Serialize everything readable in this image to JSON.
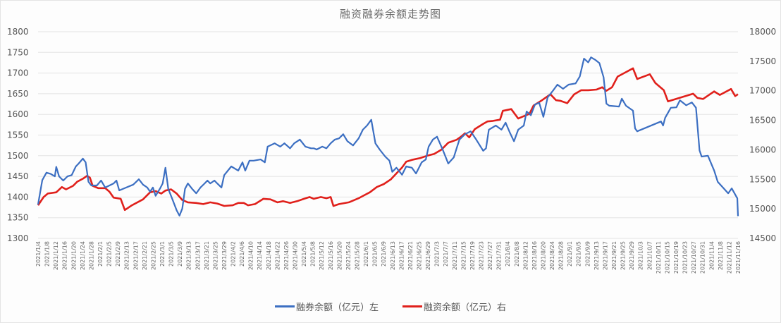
{
  "chart_data": {
    "type": "line",
    "title": "融资融券余额走势图",
    "xlabel": "",
    "ylabel_left": "融券余额（亿元）",
    "ylabel_right": "融资余额（亿元）",
    "left_axis": {
      "min": 1300,
      "max": 1800,
      "step": 50,
      "ticks": [
        1300,
        1350,
        1400,
        1450,
        1500,
        1550,
        1600,
        1650,
        1700,
        1750,
        1800
      ]
    },
    "right_axis": {
      "min": 14500,
      "max": 18000,
      "step": 500,
      "ticks": [
        14500,
        15000,
        15500,
        16000,
        16500,
        17000,
        17500,
        18000
      ]
    },
    "grid": true,
    "legend_position": "bottom",
    "x_range": [
      "2021/1/4",
      "2021/11/16"
    ],
    "categories": [
      "2021/1/4",
      "2021/1/8",
      "2021/1/12",
      "2021/1/16",
      "2021/1/20",
      "2021/1/24",
      "2021/1/28",
      "2021/2/1",
      "2021/2/5",
      "2021/2/9",
      "2021/2/13",
      "2021/2/17",
      "2021/2/21",
      "2021/2/25",
      "2021/3/1",
      "2021/3/5",
      "2021/3/9",
      "2021/3/13",
      "2021/3/17",
      "2021/3/21",
      "2021/3/25",
      "2021/3/29",
      "2021/4/2",
      "2021/4/6",
      "2021/4/10",
      "2021/4/14",
      "2021/4/18",
      "2021/4/22",
      "2021/4/26",
      "2021/4/30",
      "2021/5/4",
      "2021/5/8",
      "2021/5/12",
      "2021/5/16",
      "2021/5/20",
      "2021/5/24",
      "2021/5/28",
      "2021/6/1",
      "2021/6/5",
      "2021/6/9",
      "2021/6/13",
      "2021/6/17",
      "2021/6/21",
      "2021/6/25",
      "2021/6/29",
      "2021/7/3",
      "2021/7/7",
      "2021/7/11",
      "2021/7/15",
      "2021/7/19",
      "2021/7/23",
      "2021/7/27",
      "2021/7/31",
      "2021/8/4",
      "2021/8/8",
      "2021/8/12",
      "2021/8/16",
      "2021/8/20",
      "2021/8/24",
      "2021/8/28",
      "2021/9/1",
      "2021/9/5",
      "2021/9/9",
      "2021/9/13",
      "2021/9/17",
      "2021/9/21",
      "2021/9/25",
      "2021/9/29",
      "2021/10/3",
      "2021/10/7",
      "2021/10/11",
      "2021/10/15",
      "2021/10/19",
      "2021/10/23",
      "2021/10/27",
      "2021/10/31",
      "2021/11/4",
      "2021/11/8",
      "2021/11/12",
      "2021/11/16"
    ],
    "series": [
      {
        "name": "融券余额（亿元）左",
        "axis": "left",
        "color": "#3c6fc2",
        "points_note": "x = fraction of time range (0=2021/1/4, 1=2021/11/16); y = value",
        "points": [
          [
            0.0,
            1382
          ],
          [
            0.006,
            1441
          ],
          [
            0.012,
            1459
          ],
          [
            0.018,
            1456
          ],
          [
            0.024,
            1450
          ],
          [
            0.026,
            1473
          ],
          [
            0.03,
            1450
          ],
          [
            0.036,
            1440
          ],
          [
            0.042,
            1450
          ],
          [
            0.048,
            1453
          ],
          [
            0.054,
            1474
          ],
          [
            0.058,
            1481
          ],
          [
            0.064,
            1493
          ],
          [
            0.068,
            1484
          ],
          [
            0.072,
            1437
          ],
          [
            0.076,
            1428
          ],
          [
            0.084,
            1428
          ],
          [
            0.09,
            1440
          ],
          [
            0.096,
            1423
          ],
          [
            0.102,
            1428
          ],
          [
            0.108,
            1433
          ],
          [
            0.112,
            1440
          ],
          [
            0.116,
            1416
          ],
          [
            0.126,
            1423
          ],
          [
            0.136,
            1430
          ],
          [
            0.144,
            1443
          ],
          [
            0.15,
            1430
          ],
          [
            0.156,
            1423
          ],
          [
            0.16,
            1413
          ],
          [
            0.164,
            1423
          ],
          [
            0.168,
            1403
          ],
          [
            0.174,
            1420
          ],
          [
            0.178,
            1433
          ],
          [
            0.182,
            1471
          ],
          [
            0.186,
            1420
          ],
          [
            0.192,
            1394
          ],
          [
            0.198,
            1368
          ],
          [
            0.202,
            1355
          ],
          [
            0.206,
            1372
          ],
          [
            0.21,
            1420
          ],
          [
            0.214,
            1433
          ],
          [
            0.22,
            1420
          ],
          [
            0.226,
            1409
          ],
          [
            0.232,
            1423
          ],
          [
            0.238,
            1433
          ],
          [
            0.242,
            1440
          ],
          [
            0.246,
            1433
          ],
          [
            0.252,
            1440
          ],
          [
            0.256,
            1433
          ],
          [
            0.262,
            1423
          ],
          [
            0.266,
            1453
          ],
          [
            0.276,
            1474
          ],
          [
            0.286,
            1464
          ],
          [
            0.292,
            1484
          ],
          [
            0.296,
            1464
          ],
          [
            0.302,
            1488
          ],
          [
            0.308,
            1488
          ],
          [
            0.318,
            1491
          ],
          [
            0.324,
            1484
          ],
          [
            0.328,
            1522
          ],
          [
            0.338,
            1530
          ],
          [
            0.346,
            1522
          ],
          [
            0.352,
            1530
          ],
          [
            0.36,
            1518
          ],
          [
            0.366,
            1530
          ],
          [
            0.374,
            1539
          ],
          [
            0.382,
            1522
          ],
          [
            0.39,
            1518
          ],
          [
            0.394,
            1518
          ],
          [
            0.398,
            1515
          ],
          [
            0.406,
            1522
          ],
          [
            0.412,
            1518
          ],
          [
            0.418,
            1530
          ],
          [
            0.424,
            1539
          ],
          [
            0.43,
            1542
          ],
          [
            0.436,
            1552
          ],
          [
            0.442,
            1535
          ],
          [
            0.45,
            1525
          ],
          [
            0.458,
            1542
          ],
          [
            0.464,
            1563
          ],
          [
            0.47,
            1573
          ],
          [
            0.476,
            1587
          ],
          [
            0.482,
            1530
          ],
          [
            0.488,
            1515
          ],
          [
            0.496,
            1498
          ],
          [
            0.502,
            1488
          ],
          [
            0.506,
            1461
          ],
          [
            0.512,
            1471
          ],
          [
            0.52,
            1454
          ],
          [
            0.526,
            1474
          ],
          [
            0.534,
            1471
          ],
          [
            0.54,
            1457
          ],
          [
            0.548,
            1484
          ],
          [
            0.554,
            1491
          ],
          [
            0.558,
            1522
          ],
          [
            0.564,
            1539
          ],
          [
            0.57,
            1546
          ],
          [
            0.578,
            1515
          ],
          [
            0.586,
            1481
          ],
          [
            0.594,
            1496
          ],
          [
            0.598,
            1518
          ],
          [
            0.602,
            1539
          ],
          [
            0.61,
            1552
          ],
          [
            0.618,
            1559
          ],
          [
            0.626,
            1539
          ],
          [
            0.636,
            1512
          ],
          [
            0.64,
            1518
          ],
          [
            0.644,
            1563
          ],
          [
            0.654,
            1573
          ],
          [
            0.662,
            1563
          ],
          [
            0.668,
            1580
          ],
          [
            0.674,
            1556
          ],
          [
            0.68,
            1535
          ],
          [
            0.686,
            1563
          ],
          [
            0.694,
            1573
          ],
          [
            0.698,
            1607
          ],
          [
            0.704,
            1598
          ],
          [
            0.71,
            1624
          ],
          [
            0.716,
            1628
          ],
          [
            0.722,
            1594
          ],
          [
            0.728,
            1641
          ],
          [
            0.736,
            1658
          ],
          [
            0.742,
            1672
          ],
          [
            0.75,
            1662
          ],
          [
            0.758,
            1672
          ],
          [
            0.768,
            1675
          ],
          [
            0.774,
            1692
          ],
          [
            0.736,
            1658
          ],
          [
            0.78,
            1735
          ],
          [
            0.786,
            1726
          ],
          [
            0.79,
            1738
          ],
          [
            0.796,
            1732
          ],
          [
            0.802,
            1724
          ],
          [
            0.808,
            1690
          ],
          [
            0.812,
            1626
          ],
          [
            0.816,
            1621
          ],
          [
            0.83,
            1619
          ],
          [
            0.834,
            1638
          ],
          [
            0.84,
            1621
          ],
          [
            0.85,
            1609
          ],
          [
            0.853,
            1566
          ],
          [
            0.856,
            1559
          ],
          [
            0.89,
            1583
          ],
          [
            0.893,
            1573
          ],
          [
            0.896,
            1592
          ],
          [
            0.904,
            1616
          ],
          [
            0.912,
            1617
          ],
          [
            0.917,
            1634
          ],
          [
            0.926,
            1622
          ],
          [
            0.934,
            1629
          ],
          [
            0.94,
            1616
          ],
          [
            0.945,
            1513
          ],
          [
            0.948,
            1498
          ],
          [
            0.957,
            1500
          ],
          [
            0.966,
            1464
          ],
          [
            0.971,
            1437
          ],
          [
            0.986,
            1409
          ],
          [
            0.991,
            1421
          ],
          [
            0.999,
            1397
          ],
          [
            1.0,
            1354
          ]
        ]
      },
      {
        "name": "融资余额（亿元）右",
        "axis": "right",
        "color": "#e0201b",
        "points_note": "x = fraction of time range (0=2021/1/4, 1=2021/11/16); y = value",
        "points": [
          [
            0.0,
            15060
          ],
          [
            0.008,
            15200
          ],
          [
            0.014,
            15260
          ],
          [
            0.026,
            15280
          ],
          [
            0.034,
            15370
          ],
          [
            0.04,
            15330
          ],
          [
            0.05,
            15390
          ],
          [
            0.056,
            15460
          ],
          [
            0.064,
            15510
          ],
          [
            0.07,
            15560
          ],
          [
            0.074,
            15530
          ],
          [
            0.078,
            15390
          ],
          [
            0.086,
            15350
          ],
          [
            0.096,
            15350
          ],
          [
            0.102,
            15290
          ],
          [
            0.108,
            15190
          ],
          [
            0.118,
            15170
          ],
          [
            0.124,
            14980
          ],
          [
            0.134,
            15060
          ],
          [
            0.15,
            15160
          ],
          [
            0.16,
            15280
          ],
          [
            0.168,
            15300
          ],
          [
            0.176,
            15260
          ],
          [
            0.182,
            15310
          ],
          [
            0.19,
            15330
          ],
          [
            0.198,
            15260
          ],
          [
            0.206,
            15150
          ],
          [
            0.214,
            15110
          ],
          [
            0.226,
            15100
          ],
          [
            0.236,
            15080
          ],
          [
            0.246,
            15110
          ],
          [
            0.256,
            15090
          ],
          [
            0.266,
            15050
          ],
          [
            0.278,
            15060
          ],
          [
            0.286,
            15100
          ],
          [
            0.294,
            15100
          ],
          [
            0.3,
            15060
          ],
          [
            0.31,
            15080
          ],
          [
            0.322,
            15170
          ],
          [
            0.332,
            15160
          ],
          [
            0.342,
            15110
          ],
          [
            0.35,
            15130
          ],
          [
            0.36,
            15100
          ],
          [
            0.37,
            15130
          ],
          [
            0.38,
            15170
          ],
          [
            0.388,
            15200
          ],
          [
            0.394,
            15170
          ],
          [
            0.404,
            15200
          ],
          [
            0.412,
            15180
          ],
          [
            0.418,
            15200
          ],
          [
            0.422,
            15050
          ],
          [
            0.43,
            15080
          ],
          [
            0.444,
            15110
          ],
          [
            0.458,
            15180
          ],
          [
            0.466,
            15230
          ],
          [
            0.474,
            15280
          ],
          [
            0.484,
            15370
          ],
          [
            0.494,
            15420
          ],
          [
            0.504,
            15500
          ],
          [
            0.512,
            15600
          ],
          [
            0.52,
            15700
          ],
          [
            0.526,
            15800
          ],
          [
            0.534,
            15830
          ],
          [
            0.546,
            15860
          ],
          [
            0.556,
            15900
          ],
          [
            0.566,
            15930
          ],
          [
            0.576,
            16000
          ],
          [
            0.586,
            16120
          ],
          [
            0.598,
            16170
          ],
          [
            0.604,
            16220
          ],
          [
            0.61,
            16280
          ],
          [
            0.616,
            16210
          ],
          [
            0.624,
            16350
          ],
          [
            0.636,
            16440
          ],
          [
            0.642,
            16480
          ],
          [
            0.65,
            16490
          ],
          [
            0.66,
            16510
          ],
          [
            0.664,
            16660
          ],
          [
            0.676,
            16690
          ],
          [
            0.686,
            16530
          ],
          [
            0.694,
            16570
          ],
          [
            0.702,
            16610
          ],
          [
            0.708,
            16750
          ],
          [
            0.72,
            16840
          ],
          [
            0.732,
            16940
          ],
          [
            0.74,
            16840
          ],
          [
            0.746,
            16830
          ],
          [
            0.756,
            16790
          ],
          [
            0.766,
            16940
          ],
          [
            0.776,
            17010
          ],
          [
            0.786,
            17010
          ],
          [
            0.798,
            17020
          ],
          [
            0.806,
            17060
          ],
          [
            0.812,
            17000
          ],
          [
            0.82,
            17060
          ],
          [
            0.828,
            17240
          ],
          [
            0.85,
            17380
          ],
          [
            0.856,
            17200
          ],
          [
            0.874,
            17280
          ],
          [
            0.882,
            17130
          ],
          [
            0.894,
            17010
          ],
          [
            0.9,
            16820
          ],
          [
            0.936,
            16950
          ],
          [
            0.942,
            16880
          ],
          [
            0.95,
            16860
          ],
          [
            0.966,
            16990
          ],
          [
            0.974,
            16930
          ],
          [
            0.99,
            17030
          ],
          [
            0.996,
            16910
          ],
          [
            1.0,
            16940
          ]
        ]
      }
    ]
  },
  "legend": {
    "items": [
      {
        "label": "融券余额（亿元）左",
        "color": "#3c6fc2"
      },
      {
        "label": "融资余额（亿元）右",
        "color": "#e0201b"
      }
    ]
  }
}
